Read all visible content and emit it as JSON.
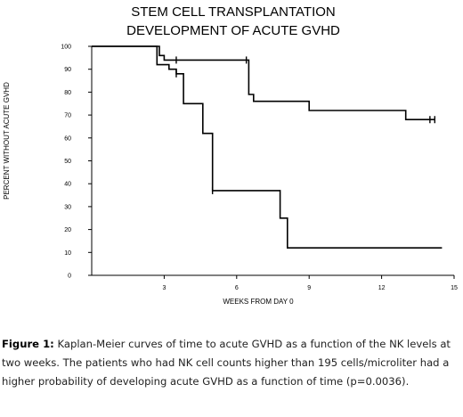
{
  "chart_data": {
    "type": "line",
    "title_lines": [
      "STEM CELL TRANSPLANTATION",
      "DEVELOPMENT OF ACUTE GVHD"
    ],
    "xlabel": "WEEKS FROM DAY 0",
    "ylabel": "PERCENT WITHOUT ACUTE GVHD",
    "xlim": [
      0,
      15
    ],
    "ylim": [
      0,
      100
    ],
    "x_ticks": [
      3,
      6,
      9,
      12,
      15
    ],
    "y_ticks": [
      0,
      10,
      20,
      30,
      40,
      50,
      60,
      70,
      80,
      90,
      100
    ],
    "series": [
      {
        "step": true,
        "x": [
          0,
          2.8,
          2.8,
          3.0,
          3.0,
          3.5,
          3.5,
          6.5,
          6.5,
          6.7,
          6.7,
          9.0,
          9.0,
          13.0,
          13.0,
          14.2
        ],
        "y": [
          100,
          100,
          96,
          96,
          94,
          94,
          94,
          94,
          79,
          79,
          76,
          76,
          72,
          72,
          68,
          68
        ],
        "censor_x": [
          3.5,
          6.4,
          14.0,
          14.2
        ]
      },
      {
        "step": true,
        "x": [
          0,
          2.7,
          2.7,
          3.2,
          3.2,
          3.5,
          3.5,
          3.8,
          3.8,
          4.6,
          4.6,
          5.0,
          5.0,
          7.8,
          7.8,
          8.1,
          8.1,
          14.5
        ],
        "y": [
          100,
          100,
          92,
          92,
          90,
          90,
          88,
          88,
          75,
          75,
          62,
          62,
          37,
          37,
          25,
          25,
          12,
          12
        ],
        "censor_x": [
          3.5,
          5.0
        ]
      }
    ]
  },
  "caption": {
    "label": "Figure 1:",
    "text": " Kaplan-Meier curves of time to acute GVHD as a function of the NK levels at two weeks. The patients who had NK cell counts higher than 195 cells/microliter had a higher probability of developing acute GVHD as a function of time (p=0.0036)."
  }
}
